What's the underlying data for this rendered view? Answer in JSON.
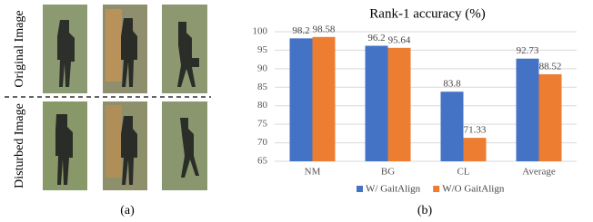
{
  "panel_a": {
    "row_labels": [
      "Original Image",
      "Disturbed Image"
    ],
    "caption": "(a)"
  },
  "panel_b": {
    "caption": "(b)"
  },
  "chart_data": {
    "type": "bar",
    "title": "Rank-1 accuracy (%)",
    "categories": [
      "NM",
      "BG",
      "CL",
      "Average"
    ],
    "series": [
      {
        "name": "W/ GaitAlign",
        "color": "#4472c4",
        "values": [
          98.2,
          96.2,
          83.8,
          92.73
        ]
      },
      {
        "name": "W/O GaitAlign",
        "color": "#ed7d31",
        "values": [
          98.58,
          95.64,
          71.33,
          88.52
        ]
      }
    ],
    "ylim": [
      65,
      100
    ],
    "yticks": [
      65,
      70,
      75,
      80,
      85,
      90,
      95,
      100
    ],
    "grid": true,
    "legend": "bottom"
  }
}
